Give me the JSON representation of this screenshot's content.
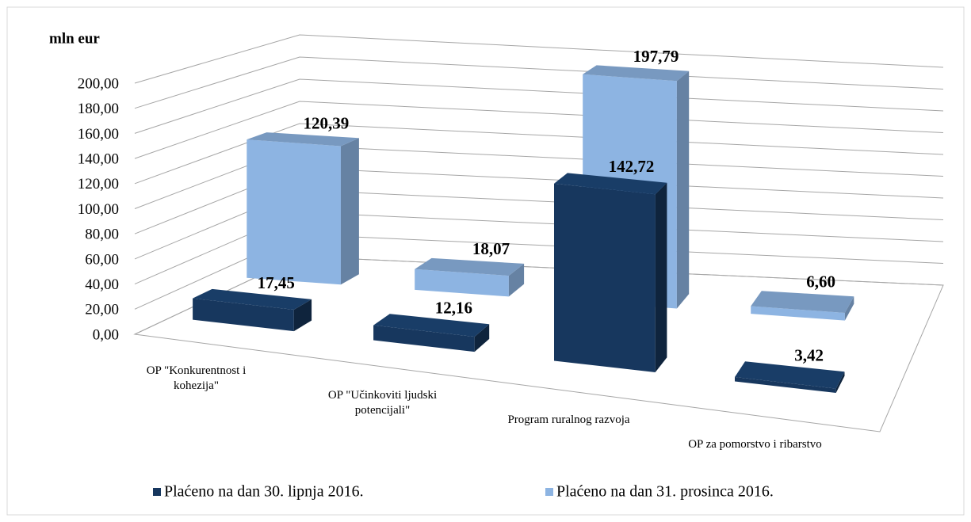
{
  "chart_data": {
    "type": "bar3d",
    "ylabel": "mln eur",
    "categories": [
      "OP \"Konkurentnost i kohezija\"",
      "OP \"Učinkoviti ljudski potencijali\"",
      "Program ruralnog razvoja",
      "OP za pomorstvo i ribarstvo"
    ],
    "series": [
      {
        "name": "Plaćeno na dan 30. lipnja 2016.",
        "color": "#17375e",
        "values": [
          17.45,
          12.16,
          142.72,
          3.42
        ],
        "value_labels": [
          "17,45",
          "12,16",
          "142,72",
          "3,42"
        ]
      },
      {
        "name": "Plaćeno na dan 31. prosinca 2016.",
        "color": "#8db4e2",
        "values": [
          120.39,
          18.07,
          197.79,
          6.6
        ],
        "value_labels": [
          "120,39",
          "18,07",
          "197,79",
          "6,60"
        ]
      }
    ],
    "ylim": [
      0,
      200
    ],
    "yticks": [
      {
        "value": 0,
        "label": "0,00"
      },
      {
        "value": 20,
        "label": "20,00"
      },
      {
        "value": 40,
        "label": "40,00"
      },
      {
        "value": 60,
        "label": "60,00"
      },
      {
        "value": 80,
        "label": "80,00"
      },
      {
        "value": 100,
        "label": "100,00"
      },
      {
        "value": 120,
        "label": "120,00"
      },
      {
        "value": 140,
        "label": "140,00"
      },
      {
        "value": 160,
        "label": "160,00"
      },
      {
        "value": 180,
        "label": "180,00"
      },
      {
        "value": 200,
        "label": "200,00"
      }
    ],
    "grid": true,
    "legend": "bottom"
  }
}
